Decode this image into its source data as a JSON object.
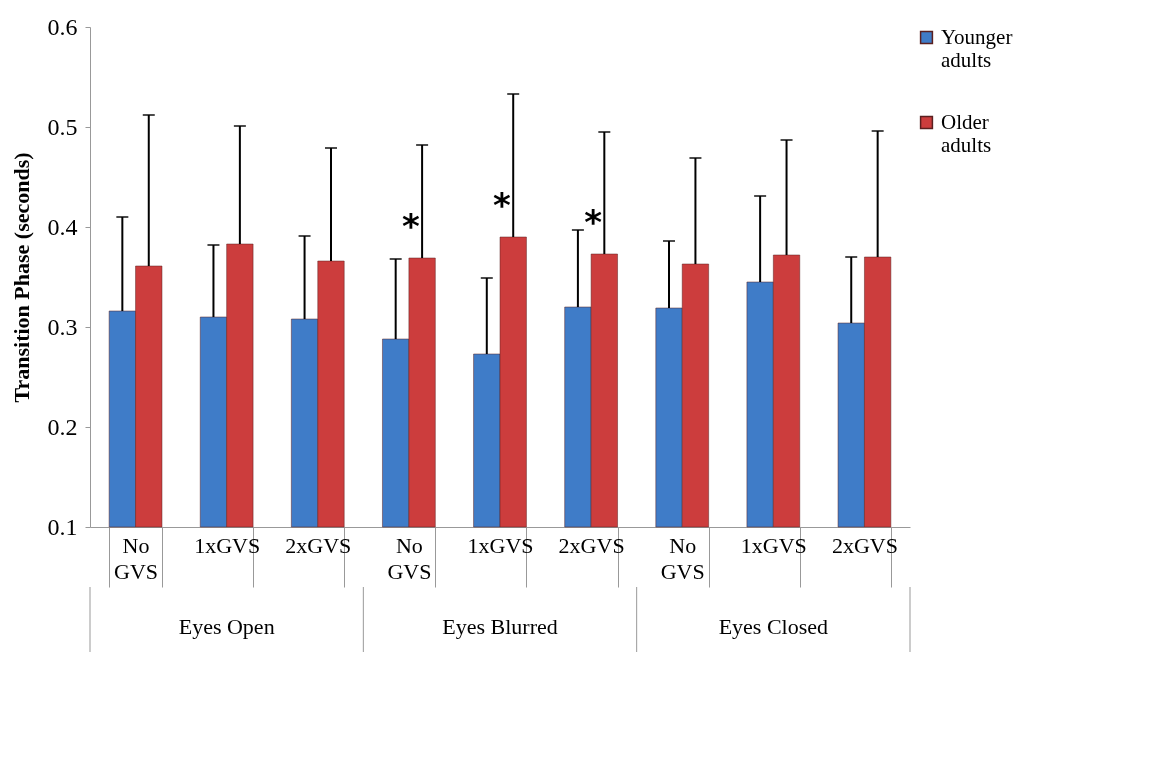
{
  "chart_data": {
    "type": "bar",
    "ylabel": "Transition Phase (seconds)",
    "categories": [
      "No GVS",
      "1xGVS",
      "2xGVS",
      "No GVS",
      "1xGVS",
      "2xGVS",
      "No GVS",
      "1xGVS",
      "2xGVS"
    ],
    "series": [
      {
        "name": "Younger adults",
        "color": "#3f7cc8",
        "values": [
          0.316,
          0.31,
          0.308,
          0.288,
          0.273,
          0.32,
          0.319,
          0.345,
          0.304
        ],
        "errors": [
          [
            0.316,
            0.41
          ],
          [
            0.31,
            0.382
          ],
          [
            0.308,
            0.391
          ],
          [
            0.288,
            0.368
          ],
          [
            0.273,
            0.349
          ],
          [
            0.32,
            0.397
          ],
          [
            0.319,
            0.386
          ],
          [
            0.345,
            0.431
          ],
          [
            0.304,
            0.37
          ]
        ]
      },
      {
        "name": "Older adults",
        "color": "#cc3d3d",
        "values": [
          0.361,
          0.383,
          0.366,
          0.369,
          0.39,
          0.373,
          0.363,
          0.372,
          0.37
        ],
        "errors": [
          [
            0.361,
            0.512
          ],
          [
            0.383,
            0.501
          ],
          [
            0.366,
            0.479
          ],
          [
            0.369,
            0.482
          ],
          [
            0.39,
            0.533
          ],
          [
            0.373,
            0.495
          ],
          [
            0.363,
            0.469
          ],
          [
            0.372,
            0.487
          ],
          [
            0.37,
            0.496
          ]
        ]
      }
    ],
    "ylim": [
      0.1,
      0.6
    ],
    "yticks": [
      0.1,
      0.2,
      0.3,
      0.4,
      0.5,
      0.6
    ],
    "grid": false,
    "legend": "right",
    "annotations": [
      "Eyes Open",
      "Eyes Blurred",
      "Eyes Closed",
      "*",
      "*",
      "*"
    ]
  }
}
